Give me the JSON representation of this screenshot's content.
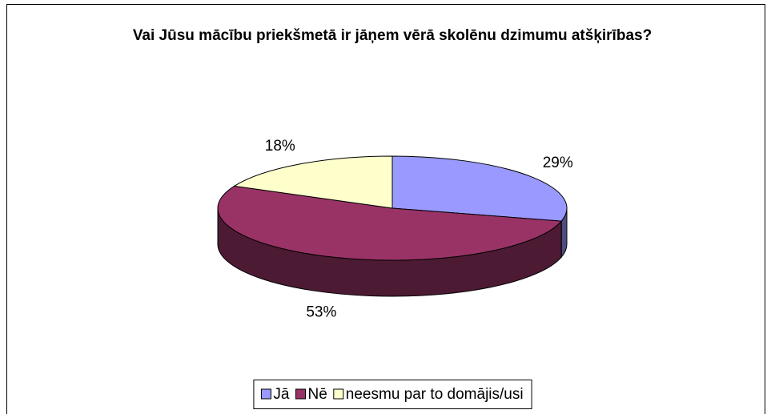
{
  "chart_data": {
    "type": "pie3d",
    "title": "Vai Jūsu mācību priekšmetā ir jāņem vērā skolēnu dzimumu atšķirības?",
    "categories": [
      "Jā",
      "Nē",
      "neesmu par to domājis/usi"
    ],
    "values": [
      29,
      53,
      18
    ],
    "value_labels": [
      "29%",
      "53%",
      "18%"
    ],
    "colors": [
      "#9999ff",
      "#993366",
      "#ffffcc"
    ],
    "legend": "bottom"
  }
}
